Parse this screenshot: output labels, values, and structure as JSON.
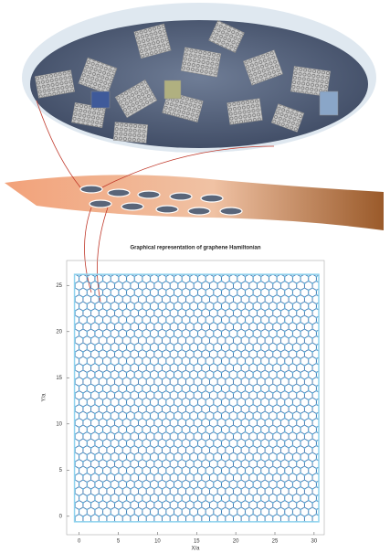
{
  "plot": {
    "title": "Graphical representation of graphene Hamiltonian",
    "xlabel": "X/a",
    "ylabel": "Y/a",
    "xlim": [
      -1.6,
      31.3
    ],
    "ylim": [
      -2,
      27.7
    ],
    "xticks": [
      0,
      5,
      10,
      15,
      20,
      25,
      30
    ],
    "yticks": [
      0,
      5,
      10,
      15,
      20,
      25
    ]
  }
}
